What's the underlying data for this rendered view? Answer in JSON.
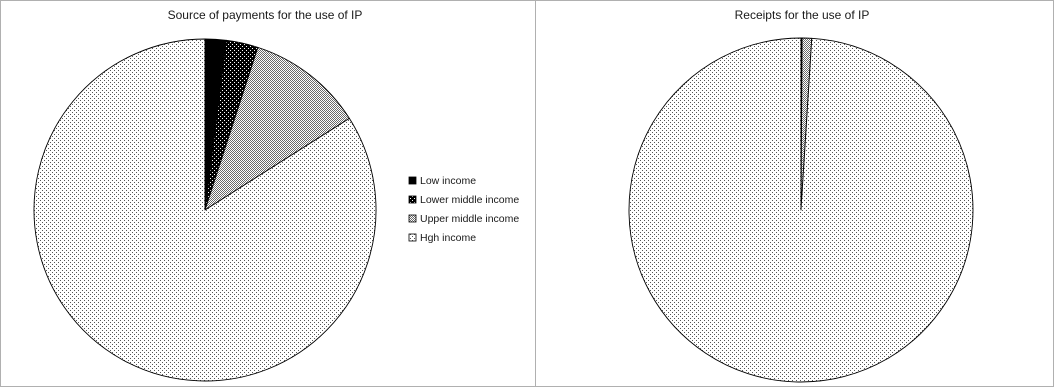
{
  "chart_data": [
    {
      "type": "pie",
      "title": "Source of payments for the use of IP",
      "categories": [
        "Low income",
        "Lower middle income",
        "Upper middle income",
        "Hgh income"
      ],
      "values": [
        2.0,
        3.0,
        11.0,
        84.0
      ],
      "start_angle_deg": 0,
      "direction": "clockwise",
      "legend": "right"
    },
    {
      "type": "pie",
      "title": "Receipts for the use of IP",
      "categories": [
        "Low income",
        "Lower middle income",
        "Upper middle income",
        "Hgh income"
      ],
      "values": [
        0.0,
        0.1,
        0.9,
        99.0
      ],
      "start_angle_deg": 0,
      "direction": "clockwise",
      "legend": "none"
    }
  ],
  "legend_items": [
    {
      "label": "Low income",
      "pattern": "solid-black"
    },
    {
      "label": "Lower middle income",
      "pattern": "dark-dots"
    },
    {
      "label": "Upper middle income",
      "pattern": "medium-checker"
    },
    {
      "label": "Hgh income",
      "pattern": "light-dots"
    }
  ],
  "colors": {
    "border": "#b0b0b0",
    "ink": "#000000",
    "background": "#ffffff"
  }
}
